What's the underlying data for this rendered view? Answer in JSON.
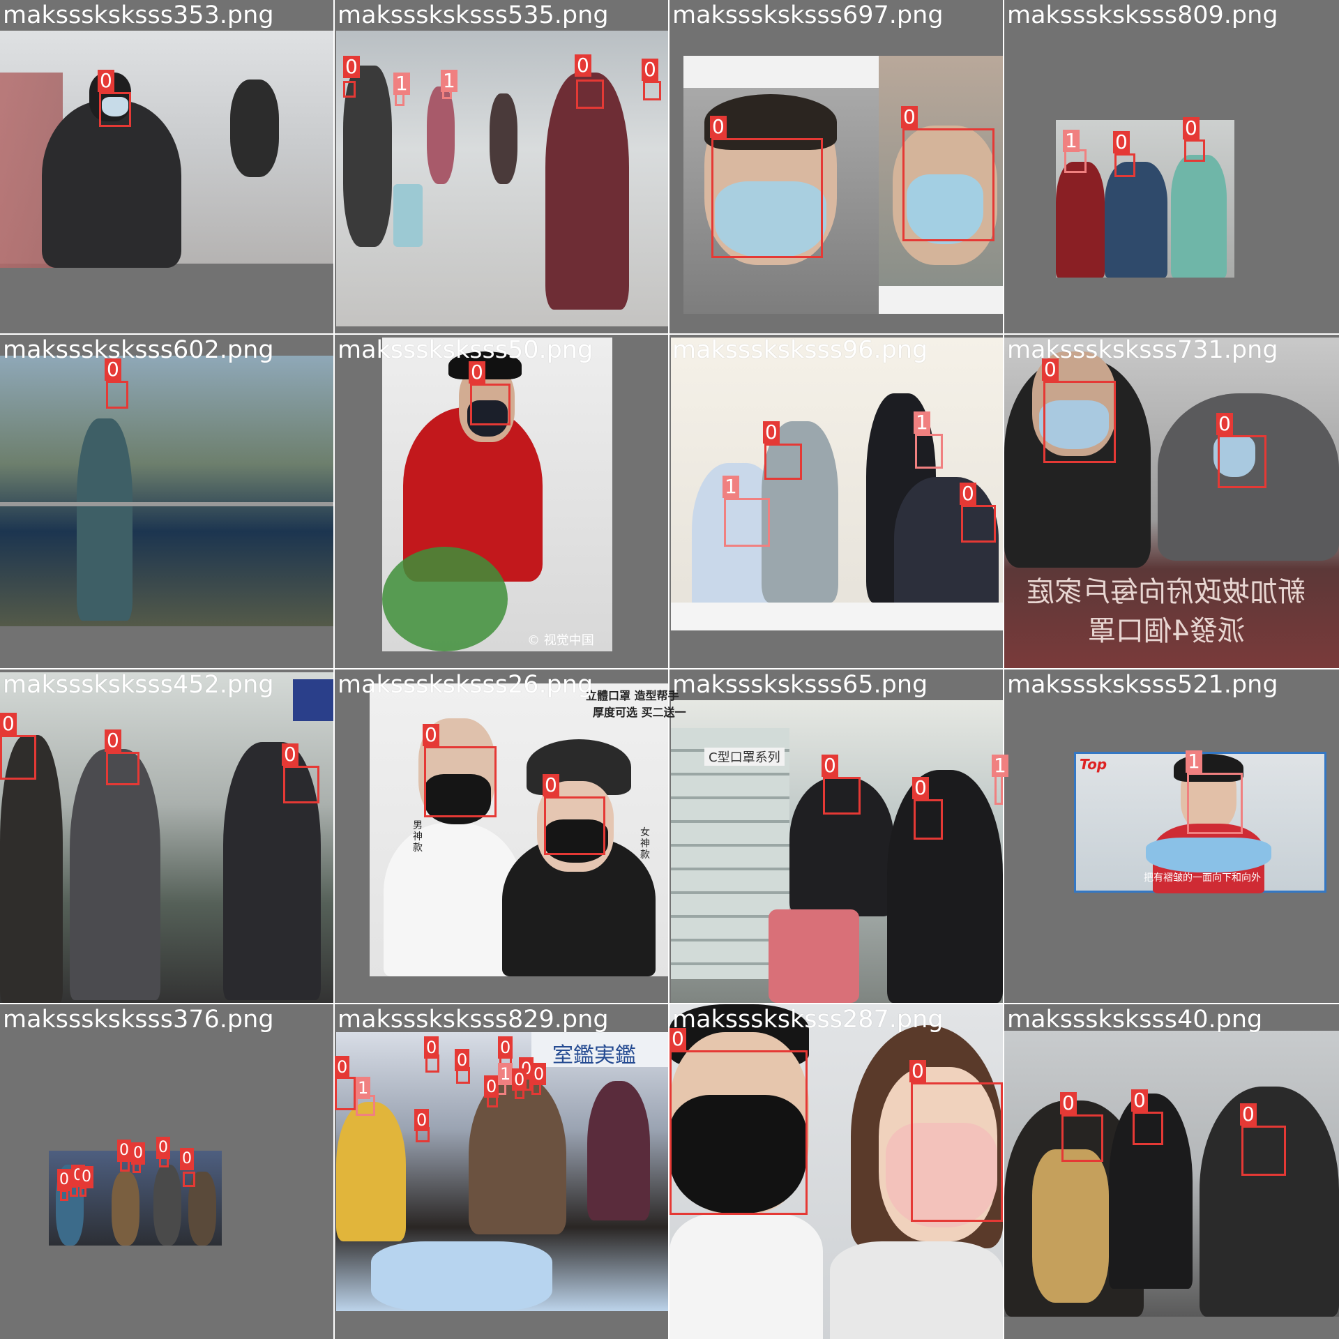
{
  "tiles": [
    {
      "filename": "maksssksksss353.png",
      "labels": [
        "0"
      ]
    },
    {
      "filename": "maksssksksss535.png",
      "labels": [
        "0",
        "1",
        "1",
        "0",
        "0"
      ]
    },
    {
      "filename": "maksssksksss697.png",
      "labels": [
        "0",
        "0"
      ]
    },
    {
      "filename": "maksssksksss809.png",
      "labels": [
        "1",
        "0",
        "0"
      ]
    },
    {
      "filename": "maksssksksss602.png",
      "labels": [
        "0"
      ]
    },
    {
      "filename": "maksssksksss50.png",
      "labels": [
        "0"
      ],
      "watermark": "© 视觉中国"
    },
    {
      "filename": "maksssksksss96.png",
      "labels": [
        "0",
        "1",
        "1",
        "0"
      ]
    },
    {
      "filename": "maksssksksss731.png",
      "labels": [
        "0",
        "0"
      ],
      "banner_line1": "新加坡政府向每戶家庭",
      "banner_line2": "派發4個口罩"
    },
    {
      "filename": "maksssksksss452.png",
      "labels": [
        "0",
        "0",
        "0"
      ]
    },
    {
      "filename": "maksssksksss26.png",
      "labels": [
        "0",
        "0"
      ],
      "ad_line1": "立體口罩 造型帮手",
      "ad_line2": "厚度可选 买二送一",
      "ad_left": "男神款",
      "ad_right": "女神款"
    },
    {
      "filename": "maksssksksss65.png",
      "labels": [
        "0",
        "0",
        "1"
      ],
      "shelf_sign": "C型口罩系列"
    },
    {
      "filename": "maksssksksss521.png",
      "labels": [
        "1"
      ],
      "logo": "Top",
      "caption": "把有褶皱的一面向下和向外"
    },
    {
      "filename": "maksssksksss376.png",
      "labels": [
        "0",
        "0",
        "0",
        "0",
        "0",
        "0",
        "0"
      ]
    },
    {
      "filename": "maksssksksss829.png",
      "labels": [
        "0",
        "1",
        "0",
        "0",
        "0",
        "0",
        "0",
        "1",
        "0",
        "0",
        "0"
      ],
      "sign": "室鑑実鑑"
    },
    {
      "filename": "maksssksksss287.png",
      "labels": [
        "0",
        "0"
      ]
    },
    {
      "filename": "maksssksksss40.png",
      "labels": [
        "0",
        "0",
        "0"
      ]
    }
  ],
  "colors": {
    "class0": "#e53935",
    "class1": "#f08080",
    "tile_bg": "#727272",
    "label_text": "#ffffff"
  }
}
